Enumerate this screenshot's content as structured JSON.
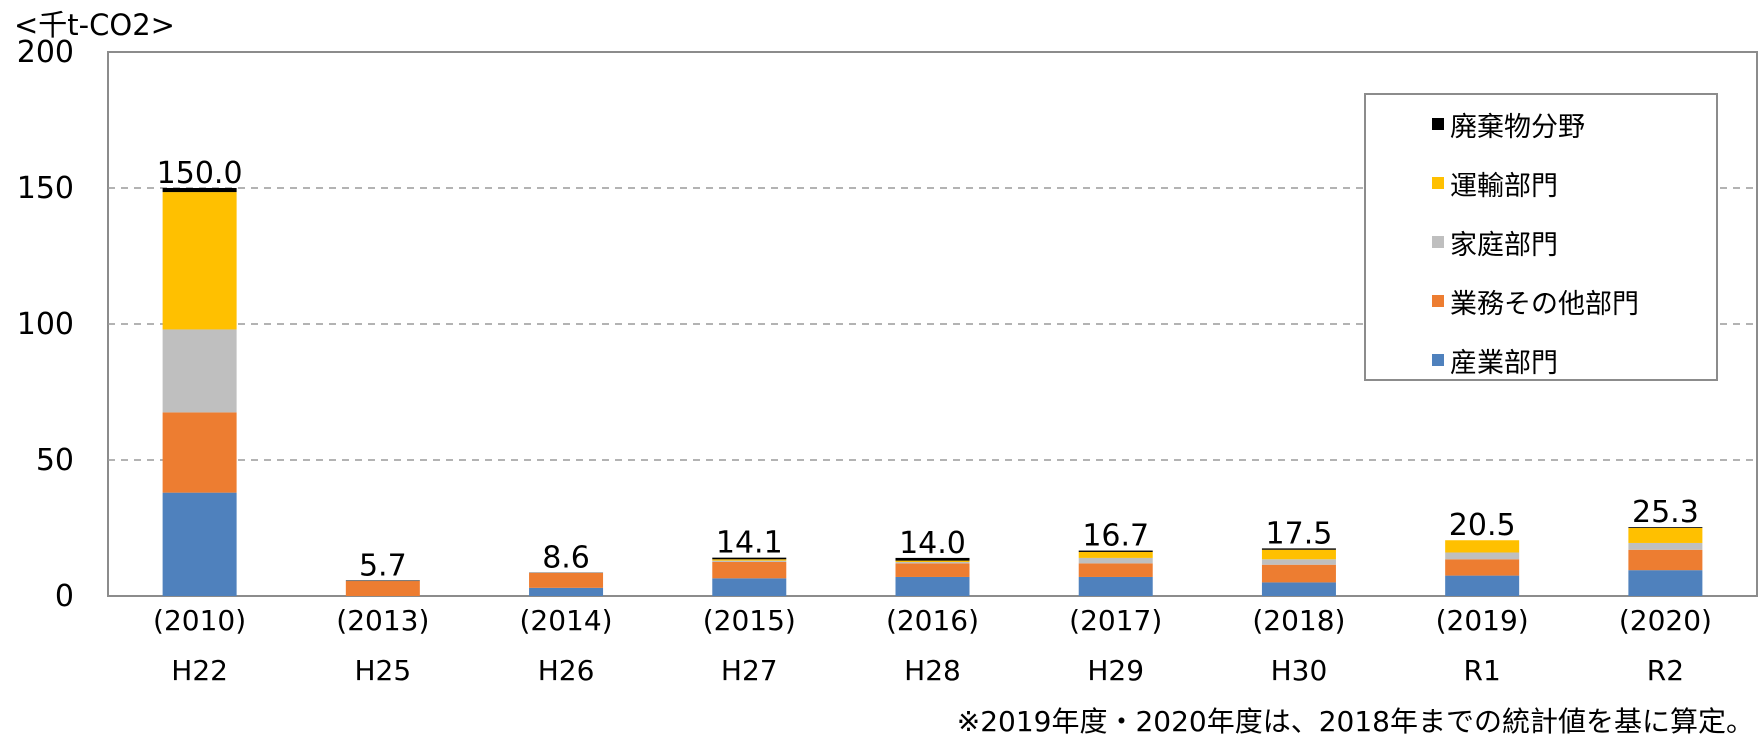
{
  "chart_data": {
    "type": "bar",
    "stacked": true,
    "unit_label": "<千t-CO2>",
    "ylim": [
      0,
      200
    ],
    "yticks": [
      "0",
      "50",
      "100",
      "150",
      "200"
    ],
    "grid": true,
    "legend_position": "top-right",
    "categories": [
      {
        "year": "(2010)",
        "era": "H22"
      },
      {
        "year": "(2013)",
        "era": "H25"
      },
      {
        "year": "(2014)",
        "era": "H26"
      },
      {
        "year": "(2015)",
        "era": "H27"
      },
      {
        "year": "(2016)",
        "era": "H28"
      },
      {
        "year": "(2017)",
        "era": "H29"
      },
      {
        "year": "(2018)",
        "era": "H30"
      },
      {
        "year": "(2019)",
        "era": "R1"
      },
      {
        "year": "(2020)",
        "era": "R2"
      }
    ],
    "series": [
      {
        "name": "産業部門",
        "color": "#4f81bd",
        "values": [
          38,
          0,
          3,
          6.5,
          7,
          7,
          5,
          7.5,
          9.5
        ]
      },
      {
        "name": "業務その他部門",
        "color": "#ed7d31",
        "values": [
          29.5,
          5.5,
          5.5,
          6,
          5,
          5,
          6.5,
          6,
          7.5
        ]
      },
      {
        "name": "家庭部門",
        "color": "#bfbfbf",
        "values": [
          30.5,
          0,
          0,
          0.5,
          0.5,
          2,
          2,
          2.5,
          2.5
        ]
      },
      {
        "name": "運輸部門",
        "color": "#ffc000",
        "values": [
          50.5,
          0,
          0,
          0.5,
          0.5,
          2.2,
          3.5,
          4.5,
          5.5
        ]
      },
      {
        "name": "廃棄物分野",
        "color": "#000000",
        "values": [
          1.5,
          0.2,
          0.1,
          0.6,
          1,
          0.5,
          0.5,
          0,
          0.3
        ]
      }
    ],
    "totals": [
      "150.0",
      "5.7",
      "8.6",
      "14.1",
      "14.0",
      "16.7",
      "17.5",
      "20.5",
      "25.3"
    ],
    "legend_order": [
      "廃棄物分野",
      "運輸部門",
      "家庭部門",
      "業務その他部門",
      "産業部門"
    ]
  },
  "footnote": "※2019年度・2020年度は、2018年までの統計値を基に算定。"
}
